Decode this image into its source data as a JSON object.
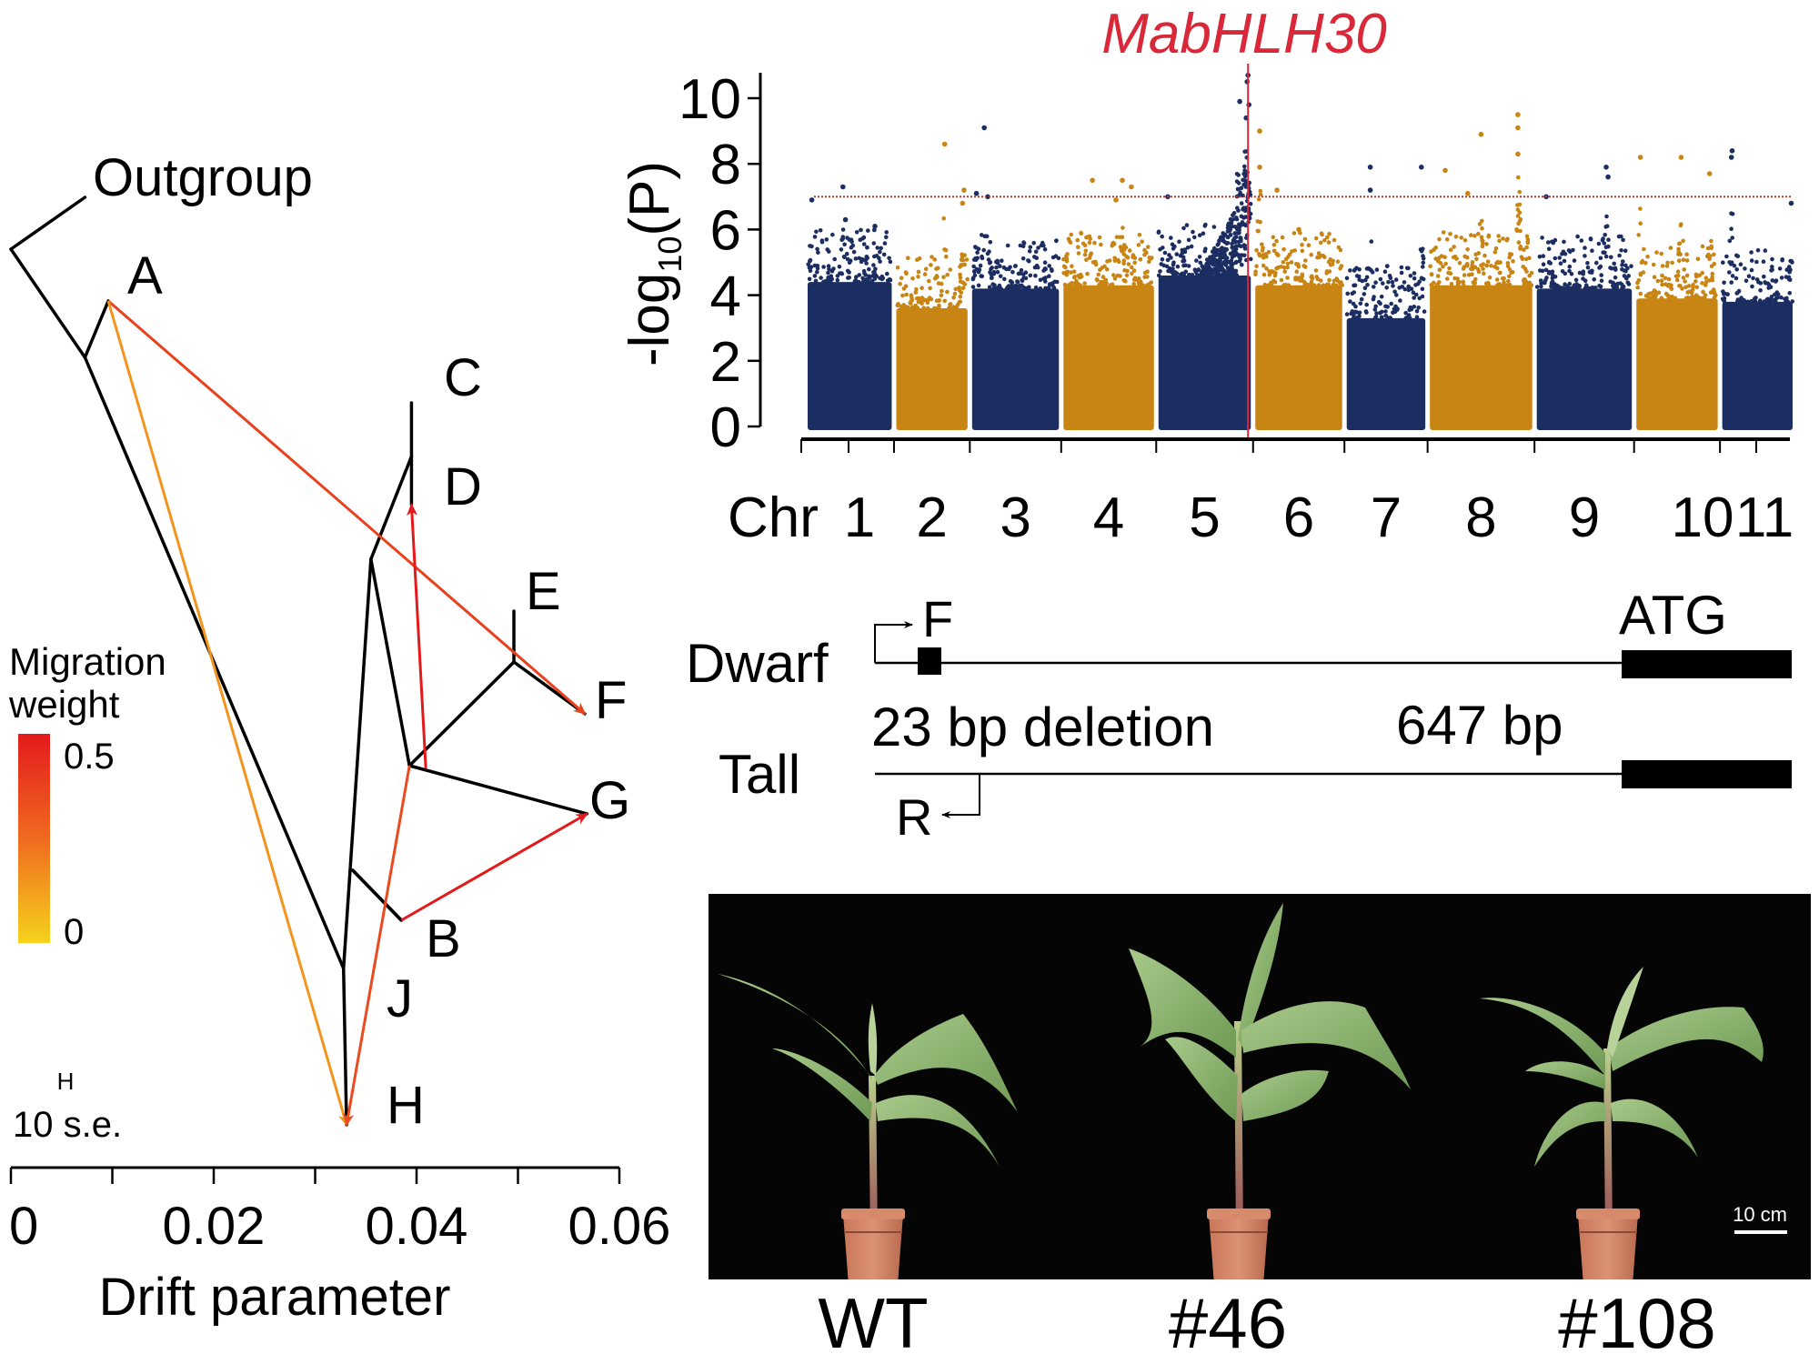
{
  "figure": {
    "panels": [
      "treemix",
      "manhattan",
      "gene-structure",
      "plant-photos"
    ]
  },
  "chart_data": [
    {
      "type": "scatter",
      "subtype": "manhattan",
      "title": "MabHLH30",
      "title_color": "#d9283a",
      "ylabel": "-log10(P)",
      "ylabel_main": "-log",
      "ylabel_sub": "10",
      "ylabel_paren": "(P)",
      "xlabel_prefix": "Chr",
      "ylim": [
        0,
        10.6
      ],
      "yticks": [
        0,
        2,
        4,
        6,
        8,
        10
      ],
      "threshold": 7.0,
      "threshold_color": "#c0392b",
      "colors": [
        "#1c2e61",
        "#c88514"
      ],
      "marker_line_color": "#d9283a",
      "marker_position": {
        "chromosome": "5",
        "fraction": 0.97
      },
      "chromosomes": [
        {
          "name": "1",
          "relative_length": 0.92,
          "base": 4.4,
          "peak_points": [
            [
              0.05,
              6.9
            ],
            [
              0.42,
              7.3
            ],
            [
              0.45,
              6.3
            ],
            [
              0.8,
              6.1
            ]
          ]
        },
        {
          "name": "2",
          "relative_length": 0.78,
          "base": 3.6,
          "peak_points": [
            [
              0.68,
              8.6
            ],
            [
              0.95,
              7.2
            ],
            [
              0.93,
              6.8
            ]
          ]
        },
        {
          "name": "3",
          "relative_length": 0.95,
          "base": 4.2,
          "peak_points": [
            [
              0.14,
              9.1
            ],
            [
              0.05,
              7.1
            ],
            [
              0.18,
              7.0
            ]
          ]
        },
        {
          "name": "4",
          "relative_length": 0.99,
          "base": 4.3,
          "peak_points": [
            [
              0.32,
              7.5
            ],
            [
              0.65,
              7.5
            ],
            [
              0.75,
              7.3
            ],
            [
              0.58,
              6.9
            ]
          ]
        },
        {
          "name": "5",
          "relative_length": 1.01,
          "base": 4.6,
          "peak_points": [
            [
              0.97,
              10.7
            ],
            [
              0.96,
              10.5
            ],
            [
              0.88,
              9.9
            ],
            [
              0.95,
              9.4
            ],
            [
              0.1,
              7.0
            ],
            [
              0.98,
              9.8
            ]
          ]
        },
        {
          "name": "6",
          "relative_length": 0.95,
          "base": 4.3,
          "peak_points": [
            [
              0.05,
              9.0
            ],
            [
              0.05,
              7.9
            ],
            [
              0.25,
              7.2
            ],
            [
              0.5,
              6.0
            ]
          ]
        },
        {
          "name": "7",
          "relative_length": 0.86,
          "base": 3.3,
          "peak_points": [
            [
              0.3,
              7.9
            ],
            [
              0.3,
              7.2
            ],
            [
              0.95,
              7.9
            ]
          ]
        },
        {
          "name": "8",
          "relative_length": 1.12,
          "base": 4.3,
          "peak_points": [
            [
              0.15,
              7.8
            ],
            [
              0.5,
              8.9
            ],
            [
              0.37,
              7.1
            ],
            [
              0.86,
              9.5
            ],
            [
              0.86,
              9.1
            ],
            [
              0.86,
              8.3
            ]
          ]
        },
        {
          "name": "9",
          "relative_length": 1.04,
          "base": 4.2,
          "peak_points": [
            [
              0.1,
              7.0
            ],
            [
              0.73,
              7.9
            ],
            [
              0.75,
              7.6
            ]
          ]
        },
        {
          "name": "10",
          "relative_length": 0.89,
          "base": 3.9,
          "peak_points": [
            [
              0.05,
              8.2
            ],
            [
              0.55,
              8.2
            ],
            [
              0.9,
              7.7
            ]
          ]
        },
        {
          "name": "11",
          "relative_length": 0.77,
          "base": 3.8,
          "peak_points": [
            [
              0.14,
              8.4
            ],
            [
              0.13,
              8.2
            ],
            [
              0.98,
              6.8
            ]
          ]
        }
      ]
    },
    {
      "type": "tree",
      "subtype": "treemix-admixture-graph",
      "xlabel": "Drift parameter",
      "xlim": [
        0,
        0.06
      ],
      "xticks": [
        0,
        0.01,
        0.02,
        0.03,
        0.04,
        0.05,
        0.06
      ],
      "xtick_labels": [
        "0",
        "",
        "0.02",
        "",
        "0.04",
        "",
        "0.06"
      ],
      "scale_label": "10 s.e.",
      "scale_marker": "H",
      "legend": {
        "title_line1": "Migration",
        "title_line2": "weight",
        "max_label": "0.5",
        "min_label": "0",
        "max_value": 0.5,
        "min_value": 0,
        "color_max": "#e31a1c",
        "color_mid": "#f06a1f",
        "color_min": "#f5d21c",
        "placement": "left"
      },
      "nodes": [
        {
          "id": "root",
          "drift": 0.0,
          "label": ""
        },
        {
          "id": "outgroup",
          "drift": 0.0073,
          "label": "Outgroup"
        },
        {
          "id": "n1",
          "drift": 0.0073,
          "label": ""
        },
        {
          "id": "A",
          "drift": 0.0096,
          "label": "A"
        },
        {
          "id": "nJ",
          "drift": 0.0328,
          "label": ""
        },
        {
          "id": "H",
          "drift": 0.0331,
          "label": "H"
        },
        {
          "id": "nB",
          "drift": 0.0337,
          "label": ""
        },
        {
          "id": "B",
          "drift": 0.0385,
          "label": "B"
        },
        {
          "id": "nCDEFG",
          "drift": 0.0355,
          "label": ""
        },
        {
          "id": "nCD",
          "drift": 0.0395,
          "label": ""
        },
        {
          "id": "C",
          "drift": 0.0395,
          "label": "C"
        },
        {
          "id": "D",
          "drift": 0.0395,
          "label": "D"
        },
        {
          "id": "nEFG",
          "drift": 0.0393,
          "label": ""
        },
        {
          "id": "nEF",
          "drift": 0.0496,
          "label": ""
        },
        {
          "id": "E",
          "drift": 0.0496,
          "label": "E"
        },
        {
          "id": "F",
          "drift": 0.0566,
          "label": "F"
        },
        {
          "id": "G",
          "drift": 0.0568,
          "label": "G"
        },
        {
          "id": "J",
          "drift": 0.0328,
          "label": "J"
        }
      ],
      "edges": [
        [
          "root",
          "outgroup"
        ],
        [
          "root",
          "n1"
        ],
        [
          "n1",
          "A"
        ],
        [
          "n1",
          "nJ"
        ],
        [
          "nJ",
          "H"
        ],
        [
          "nJ",
          "nCDEFG"
        ],
        [
          "nB",
          "B"
        ],
        [
          "nCDEFG",
          "nCD"
        ],
        [
          "nCD",
          "C"
        ],
        [
          "nCD",
          "D"
        ],
        [
          "nCDEFG",
          "nEFG"
        ],
        [
          "nEFG",
          "nEF"
        ],
        [
          "nEF",
          "E"
        ],
        [
          "nEF",
          "F"
        ],
        [
          "nEFG",
          "G"
        ]
      ],
      "migrations": [
        {
          "from": "A",
          "to": "F",
          "weight": 0.38
        },
        {
          "from": "A",
          "to": "H",
          "weight": 0.15
        },
        {
          "from": "nEFG",
          "to": "H",
          "weight": 0.35
        },
        {
          "from": "nEFG",
          "to": "D",
          "weight": 0.5
        },
        {
          "from": "B",
          "to": "G",
          "weight": 0.5
        }
      ]
    }
  ],
  "gene_structure": {
    "rows": [
      {
        "label": "Dwarf",
        "has_deletion_block": true
      },
      {
        "label": "Tall",
        "has_deletion_block": false
      }
    ],
    "forward_primer": "F",
    "reverse_primer": "R",
    "start_codon": "ATG",
    "deletion_label": "23 bp deletion",
    "length_label": "647 bp"
  },
  "photos": {
    "labels": [
      "WT",
      "#46",
      "#108"
    ],
    "scale_bar_label": "10 cm"
  }
}
